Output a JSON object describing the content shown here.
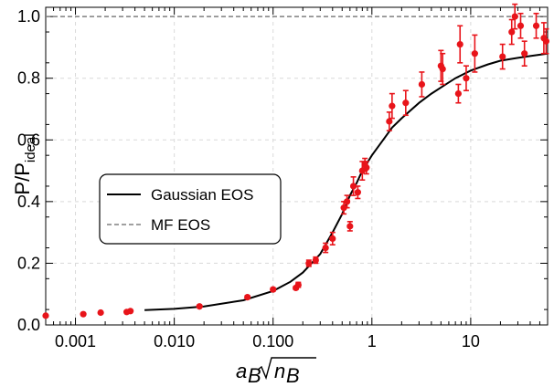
{
  "chart_data": {
    "type": "scatter",
    "title": "",
    "xlabel": {
      "base": "a",
      "base_sub": "B",
      "root_base": "n",
      "root_sub": "B"
    },
    "ylabel": {
      "main": "P/P",
      "sub": "ideal"
    },
    "x_scale": "log",
    "xlim": [
      0.0005,
      60
    ],
    "ylim": [
      0,
      1.03
    ],
    "grid": true,
    "legend_position": "center-left",
    "x_ticks": [
      0.001,
      0.01,
      0.1,
      1,
      10
    ],
    "x_tick_labels": [
      "0.001",
      "0.010",
      "0.100",
      "1",
      "10"
    ],
    "y_ticks": [
      0.0,
      0.2,
      0.4,
      0.6,
      0.8,
      1.0
    ],
    "y_tick_labels": [
      "0.0",
      "0.2",
      "0.4",
      "0.6",
      "0.8",
      "1.0"
    ],
    "colors": {
      "data": "#e8141a",
      "gaussian": "#000000",
      "mf": "#808080"
    },
    "series": [
      {
        "name": "",
        "kind": "points",
        "x": [
          0.0005,
          0.0012,
          0.0018,
          0.0033,
          0.0036,
          0.018,
          0.055,
          0.1,
          0.17,
          0.18,
          0.23,
          0.27,
          0.34,
          0.4,
          0.52,
          0.56,
          0.6,
          0.65,
          0.72,
          0.8,
          0.85,
          0.88,
          1.5,
          1.6,
          2.2,
          3.2,
          5.0,
          5.2,
          7.5,
          7.8,
          9.0,
          11.0,
          21.0,
          26.0,
          28.0,
          32.0,
          35.0,
          46.0,
          55.0,
          58.0
        ],
        "y": [
          0.03,
          0.035,
          0.04,
          0.042,
          0.045,
          0.06,
          0.09,
          0.115,
          0.12,
          0.13,
          0.2,
          0.21,
          0.25,
          0.28,
          0.38,
          0.4,
          0.32,
          0.45,
          0.43,
          0.5,
          0.52,
          0.51,
          0.66,
          0.71,
          0.72,
          0.78,
          0.84,
          0.83,
          0.75,
          0.91,
          0.8,
          0.88,
          0.87,
          0.95,
          1.0,
          0.97,
          0.88,
          0.97,
          0.93,
          0.92
        ],
        "err": [
          0,
          0,
          0,
          0,
          0,
          0,
          0.005,
          0.005,
          0.005,
          0.008,
          0.01,
          0.01,
          0.015,
          0.02,
          0.02,
          0.02,
          0.015,
          0.03,
          0.02,
          0.03,
          0.02,
          0.02,
          0.03,
          0.04,
          0.04,
          0.04,
          0.05,
          0.05,
          0.03,
          0.06,
          0.04,
          0.06,
          0.04,
          0.04,
          0.04,
          0.04,
          0.04,
          0.04,
          0.05,
          0.04
        ]
      },
      {
        "name": "Gaussian EOS",
        "kind": "line",
        "x": [
          0.005,
          0.01,
          0.02,
          0.05,
          0.1,
          0.15,
          0.2,
          0.3,
          0.4,
          0.5,
          0.6,
          0.7,
          0.8,
          1.0,
          1.3,
          1.6,
          2.0,
          3.0,
          4.0,
          5.0,
          7.0,
          10.0,
          15.0,
          20.0,
          30.0,
          40.0,
          60.0
        ],
        "y": [
          0.048,
          0.052,
          0.06,
          0.08,
          0.11,
          0.14,
          0.17,
          0.23,
          0.3,
          0.36,
          0.42,
          0.46,
          0.5,
          0.55,
          0.6,
          0.64,
          0.67,
          0.72,
          0.75,
          0.77,
          0.8,
          0.825,
          0.845,
          0.857,
          0.866,
          0.872,
          0.88
        ]
      },
      {
        "name": "MF EOS",
        "kind": "hline",
        "y": 1.0
      }
    ]
  }
}
